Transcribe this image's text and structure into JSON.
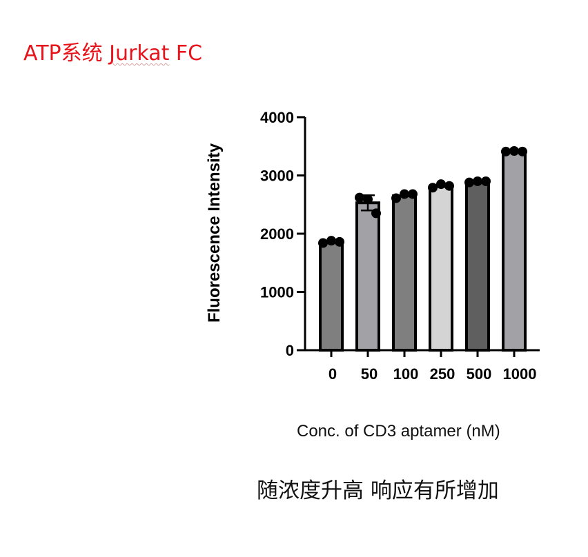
{
  "page": {
    "title_main": "ATP系统 ",
    "title_squiggle": "Jurkat",
    "title_tail": " FC",
    "note": "随浓度升高 响应有所增加"
  },
  "chart_data": {
    "type": "bar",
    "categories": [
      "0",
      "50",
      "100",
      "250",
      "500",
      "1000"
    ],
    "values": [
      1860,
      2530,
      2650,
      2810,
      2890,
      3410
    ],
    "error": [
      0,
      130,
      0,
      0,
      0,
      0
    ],
    "points": [
      [
        1840,
        1880,
        1860
      ],
      [
        2620,
        2590,
        2350
      ],
      [
        2610,
        2680,
        2680
      ],
      [
        2790,
        2850,
        2820
      ],
      [
        2880,
        2900,
        2900
      ],
      [
        3410,
        3420,
        3410
      ]
    ],
    "bar_colors": [
      "#7f7f7f",
      "#a2a2a6",
      "#7f7f7f",
      "#d4d4d4",
      "#5f5f5f",
      "#a2a2a6"
    ],
    "ylabel": "Fluorescence Intensity",
    "xlabel": "Conc. of CD3 aptamer (nM)",
    "ylim": [
      0,
      4000
    ],
    "yticks": [
      0,
      1000,
      2000,
      3000,
      4000
    ],
    "grid": false
  }
}
